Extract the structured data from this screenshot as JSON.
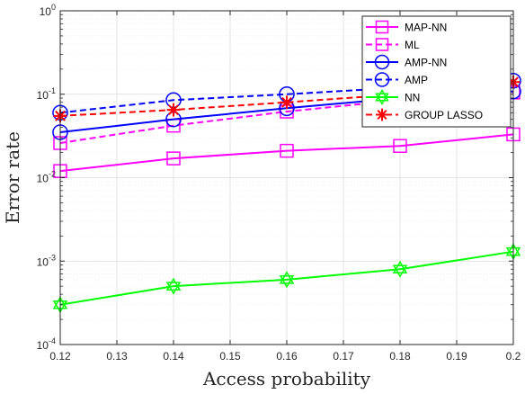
{
  "chart_data": {
    "type": "line",
    "title": "",
    "xlabel": "Access probability",
    "ylabel": "Error rate",
    "x": [
      0.12,
      0.14,
      0.16,
      0.18,
      0.2
    ],
    "xlim": [
      0.12,
      0.2
    ],
    "ylim": [
      0.0001,
      1
    ],
    "yscale": "log",
    "grid": true,
    "legend_position": "top-right",
    "x_ticks": [
      "0.12",
      "0.13",
      "0.14",
      "0.15",
      "0.16",
      "0.17",
      "0.18",
      "0.19",
      "0.2"
    ],
    "y_ticks": [
      {
        "base": "10",
        "exp": "0"
      },
      {
        "base": "10",
        "exp": "-1"
      },
      {
        "base": "10",
        "exp": "-2"
      },
      {
        "base": "10",
        "exp": "-3"
      },
      {
        "base": "10",
        "exp": "-4"
      }
    ],
    "series": [
      {
        "name": "MAP-NN",
        "color": "#ff00ff",
        "dash": "solid",
        "marker": "square",
        "values": [
          0.012,
          0.017,
          0.021,
          0.024,
          0.033
        ]
      },
      {
        "name": "ML",
        "color": "#ff00ff",
        "dash": "dashed",
        "marker": "square",
        "values": [
          0.026,
          0.042,
          0.062,
          0.085,
          0.105
        ]
      },
      {
        "name": "AMP-NN",
        "color": "#0000ff",
        "dash": "solid",
        "marker": "circle",
        "values": [
          0.035,
          0.05,
          0.068,
          0.09,
          0.108
        ]
      },
      {
        "name": "AMP",
        "color": "#0000ff",
        "dash": "dashed",
        "marker": "circle",
        "values": [
          0.06,
          0.085,
          0.1,
          0.12,
          0.145
        ]
      },
      {
        "name": "NN",
        "color": "#00ff00",
        "dash": "solid",
        "marker": "hexagram",
        "values": [
          0.0003,
          0.0005,
          0.0006,
          0.0008,
          0.0013
        ]
      },
      {
        "name": "GROUP LASSO",
        "color": "#ff0000",
        "dash": "dashed",
        "marker": "asterisk",
        "values": [
          0.055,
          0.065,
          0.08,
          0.1,
          0.14
        ]
      }
    ]
  }
}
